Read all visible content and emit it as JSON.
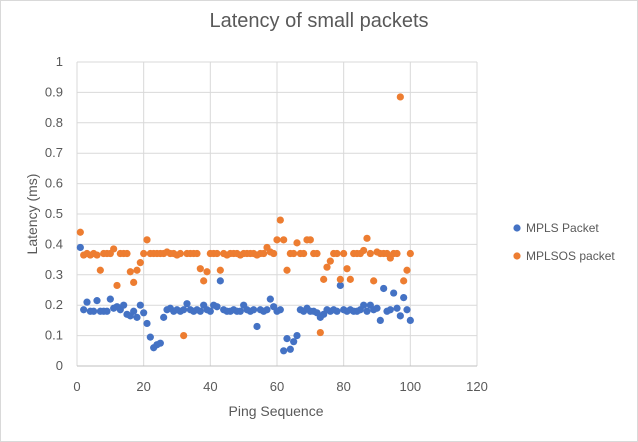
{
  "chart_data": {
    "type": "scatter",
    "title": "Latency of small packets",
    "xlabel": "Ping Sequence",
    "ylabel": "Latency (ms)",
    "xlim": [
      0,
      120
    ],
    "ylim": [
      0,
      1
    ],
    "x_ticks": [
      "0",
      "20",
      "40",
      "60",
      "80",
      "100",
      "120"
    ],
    "y_ticks": [
      "0",
      "0.1",
      "0.2",
      "0.3",
      "0.4",
      "0.5",
      "0.6",
      "0.7",
      "0.8",
      "0.9",
      "1"
    ],
    "grid": true,
    "legend_position": "right",
    "series": [
      {
        "name": "MPLS Packet",
        "color": "#4472C4",
        "x": [
          1,
          2,
          3,
          4,
          5,
          6,
          7,
          8,
          9,
          10,
          11,
          12,
          13,
          14,
          15,
          16,
          17,
          18,
          19,
          20,
          21,
          22,
          23,
          24,
          25,
          26,
          27,
          28,
          29,
          30,
          31,
          32,
          33,
          34,
          35,
          36,
          37,
          38,
          39,
          40,
          41,
          42,
          43,
          44,
          45,
          46,
          47,
          48,
          49,
          50,
          51,
          52,
          53,
          54,
          55,
          56,
          57,
          58,
          59,
          60,
          61,
          62,
          63,
          64,
          65,
          66,
          67,
          68,
          69,
          70,
          71,
          72,
          73,
          74,
          75,
          76,
          77,
          78,
          79,
          80,
          81,
          82,
          83,
          84,
          85,
          86,
          87,
          88,
          89,
          90,
          91,
          92,
          93,
          94,
          95,
          96,
          97,
          98,
          99,
          100
        ],
        "y": [
          0.39,
          0.185,
          0.21,
          0.18,
          0.18,
          0.215,
          0.18,
          0.18,
          0.18,
          0.22,
          0.19,
          0.195,
          0.185,
          0.2,
          0.17,
          0.165,
          0.18,
          0.16,
          0.2,
          0.175,
          0.14,
          0.095,
          0.06,
          0.07,
          0.075,
          0.16,
          0.185,
          0.19,
          0.18,
          0.185,
          0.18,
          0.185,
          0.205,
          0.185,
          0.18,
          0.185,
          0.18,
          0.2,
          0.185,
          0.18,
          0.2,
          0.195,
          0.28,
          0.185,
          0.18,
          0.18,
          0.185,
          0.18,
          0.18,
          0.2,
          0.185,
          0.18,
          0.185,
          0.13,
          0.185,
          0.18,
          0.185,
          0.22,
          0.195,
          0.18,
          0.185,
          0.05,
          0.09,
          0.055,
          0.08,
          0.1,
          0.185,
          0.18,
          0.19,
          0.18,
          0.18,
          0.175,
          0.16,
          0.17,
          0.185,
          0.18,
          0.185,
          0.18,
          0.265,
          0.185,
          0.18,
          0.185,
          0.18,
          0.18,
          0.185,
          0.2,
          0.18,
          0.2,
          0.185,
          0.19,
          0.15,
          0.255,
          0.18,
          0.185,
          0.24,
          0.19,
          0.165,
          0.225,
          0.185,
          0.15
        ]
      },
      {
        "name": "MPLSOS packet",
        "color": "#ED7D31",
        "x": [
          1,
          2,
          3,
          4,
          5,
          6,
          7,
          8,
          9,
          10,
          11,
          12,
          13,
          14,
          15,
          16,
          17,
          18,
          19,
          20,
          21,
          22,
          23,
          24,
          25,
          26,
          27,
          28,
          29,
          30,
          31,
          32,
          33,
          34,
          35,
          36,
          37,
          38,
          39,
          40,
          41,
          42,
          43,
          44,
          45,
          46,
          47,
          48,
          49,
          50,
          51,
          52,
          53,
          54,
          55,
          56,
          57,
          58,
          59,
          60,
          61,
          62,
          63,
          64,
          65,
          66,
          67,
          68,
          69,
          70,
          71,
          72,
          73,
          74,
          75,
          76,
          77,
          78,
          79,
          80,
          81,
          82,
          83,
          84,
          85,
          86,
          87,
          88,
          89,
          90,
          91,
          92,
          93,
          94,
          95,
          96,
          97,
          98,
          99,
          100
        ],
        "y": [
          0.44,
          0.365,
          0.37,
          0.365,
          0.37,
          0.365,
          0.315,
          0.37,
          0.37,
          0.37,
          0.385,
          0.265,
          0.37,
          0.37,
          0.37,
          0.31,
          0.275,
          0.315,
          0.34,
          0.37,
          0.415,
          0.37,
          0.37,
          0.37,
          0.37,
          0.37,
          0.375,
          0.37,
          0.37,
          0.365,
          0.37,
          0.1,
          0.37,
          0.37,
          0.37,
          0.37,
          0.32,
          0.28,
          0.31,
          0.37,
          0.37,
          0.37,
          0.315,
          0.37,
          0.365,
          0.37,
          0.37,
          0.37,
          0.365,
          0.37,
          0.37,
          0.37,
          0.37,
          0.365,
          0.37,
          0.37,
          0.39,
          0.375,
          0.37,
          0.415,
          0.48,
          0.415,
          0.315,
          0.37,
          0.37,
          0.405,
          0.37,
          0.37,
          0.415,
          0.415,
          0.37,
          0.37,
          0.11,
          0.285,
          0.325,
          0.345,
          0.37,
          0.37,
          0.285,
          0.37,
          0.32,
          0.285,
          0.37,
          0.37,
          0.37,
          0.38,
          0.42,
          0.37,
          0.28,
          0.375,
          0.37,
          0.37,
          0.37,
          0.355,
          0.37,
          0.37,
          0.885,
          0.28,
          0.315,
          0.37
        ]
      }
    ]
  }
}
